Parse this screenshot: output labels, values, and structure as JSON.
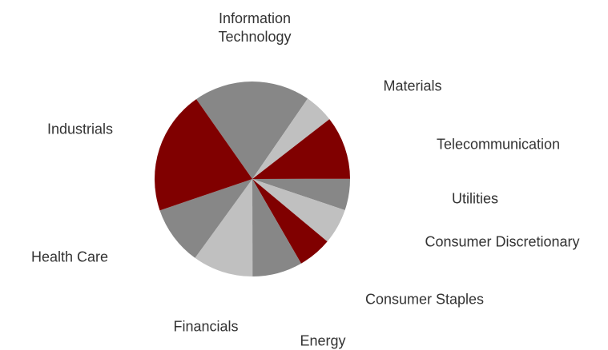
{
  "chart_data": {
    "type": "pie",
    "categories": [
      "Information Technology",
      "Materials",
      "Telecommunication",
      "Utilities",
      "Consumer Discretionary",
      "Consumer Staples",
      "Energy",
      "Financials",
      "Health Care",
      "Industrials"
    ],
    "values": [
      19.3,
      4.9,
      10.5,
      5.2,
      5.9,
      5.6,
      8.3,
      10.0,
      9.8,
      20.5
    ],
    "colors": [
      "#878787",
      "#c0c0c0",
      "#800000",
      "#878787",
      "#c0c0c0",
      "#800000",
      "#878787",
      "#c0c0c0",
      "#878787",
      "#800000"
    ]
  }
}
